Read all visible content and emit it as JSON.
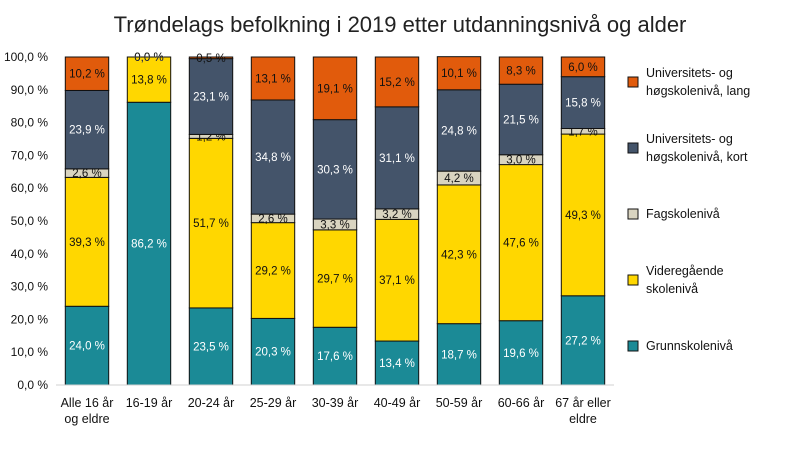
{
  "chart_data": {
    "type": "bar",
    "stacked": true,
    "title": "Trøndelags befolkning i 2019 etter utdanningsnivå og alder",
    "xlabel": "",
    "ylabel": "",
    "ylim": [
      0,
      100
    ],
    "ytick_step": 10,
    "y_tick_format": "percent_one_decimal",
    "grid": false,
    "legend_position": "right",
    "categories": [
      [
        "Alle 16 år",
        "og eldre"
      ],
      [
        "16-19 år"
      ],
      [
        "20-24 år"
      ],
      [
        "25-29 år"
      ],
      [
        "30-39 år"
      ],
      [
        "40-49 år"
      ],
      [
        "50-59 år"
      ],
      [
        "60-66 år"
      ],
      [
        "67 år eller",
        "eldre"
      ]
    ],
    "series": [
      {
        "name": [
          "Grunnskolenivå"
        ],
        "color": "#1b8a96",
        "label_color": "#ffffff",
        "values": [
          24.0,
          86.2,
          23.5,
          20.3,
          17.6,
          13.4,
          18.7,
          19.6,
          27.2
        ],
        "labels": [
          "24,0 %",
          "86,2 %",
          "23,5 %",
          "20,3 %",
          "17,6 %",
          "13,4 %",
          "18,7 %",
          "19,6 %",
          "27,2 %"
        ]
      },
      {
        "name": [
          "Videregående",
          "skolenivå"
        ],
        "color": "#ffd700",
        "label_color": "#111111",
        "values": [
          39.3,
          13.8,
          51.7,
          29.2,
          29.7,
          37.1,
          42.3,
          47.6,
          49.3
        ],
        "labels": [
          "39,3 %",
          "13,8 %",
          "51,7 %",
          "29,2 %",
          "29,7 %",
          "37,1 %",
          "42,3 %",
          "47,6 %",
          "49,3 %"
        ]
      },
      {
        "name": [
          "Fagskolenivå"
        ],
        "color": "#d9d4c0",
        "label_color": "#111111",
        "values": [
          2.6,
          0.0,
          1.2,
          2.6,
          3.3,
          3.2,
          4.2,
          3.0,
          1.7
        ],
        "labels": [
          "2,6 %",
          "0,0 %",
          "1,2 %",
          "2,6 %",
          "3,3 %",
          "3,2 %",
          "4,2 %",
          "3,0 %",
          "1,7 %"
        ]
      },
      {
        "name": [
          "Universitets- og",
          "høgskolenivå, kort"
        ],
        "color": "#44546a",
        "label_color": "#ffffff",
        "values": [
          23.9,
          0.0,
          23.1,
          34.8,
          30.3,
          31.1,
          24.8,
          21.5,
          15.8
        ],
        "labels": [
          "23,9 %",
          "0,0 %",
          "23,1 %",
          "34,8 %",
          "30,3 %",
          "31,1 %",
          "24,8 %",
          "21,5 %",
          "15,8 %"
        ]
      },
      {
        "name": [
          "Universitets- og",
          "høgskolenivå, lang"
        ],
        "color": "#e15b0c",
        "label_color": "#111111",
        "values": [
          10.2,
          0.0,
          0.5,
          13.1,
          19.1,
          15.2,
          10.1,
          8.3,
          6.0
        ],
        "labels": [
          "10,2 %",
          "0,0 %",
          "0,5 %",
          "13,1 %",
          "19,1 %",
          "15,2 %",
          "10,1 %",
          "8,3 %",
          "6,0 %"
        ]
      }
    ]
  }
}
